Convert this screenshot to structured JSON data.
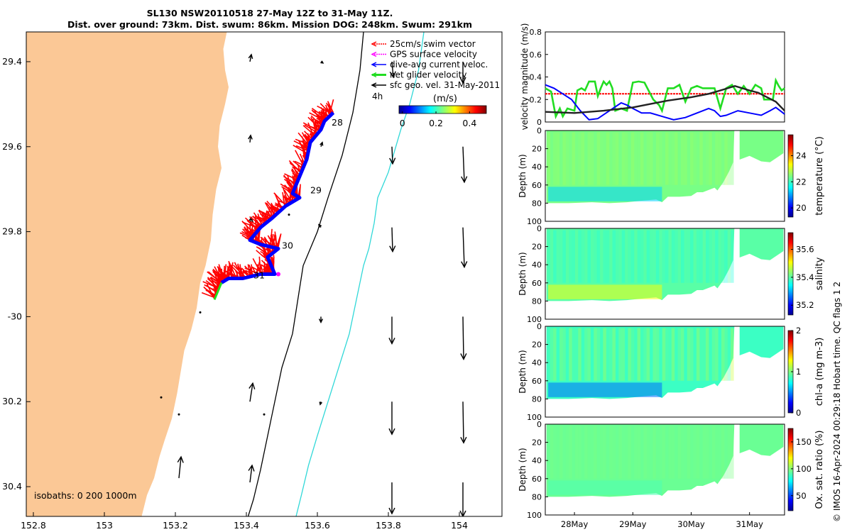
{
  "title_line1": "SL130 NSW20110518 27-May 12Z to 31-May 11Z.",
  "title_line2": "Dist. over ground: 73km. Dist. swum: 86km. Mission DOG: 248km. Swum: 291km",
  "isobaths_label": "isobaths: 0   200  1000m",
  "footer": "© IMOS 16-Apr-2024 00:29:18 Hobart time. QC flags 1  2",
  "colors": {
    "land": "#fbc896",
    "swim_vector": "#ff0000",
    "gps": "#ff00ff",
    "dive_avg": "#0000ff",
    "net": "#22dd22",
    "geo": "#000000",
    "isobath_200": "#30d8d8",
    "isobath_1000": "#000000"
  },
  "chart_data": [
    {
      "type": "map",
      "xlim": [
        152.78,
        154.12
      ],
      "ylim": [
        -30.47,
        -29.33
      ],
      "x_ticks": [
        152.8,
        153,
        153.2,
        153.4,
        153.6,
        153.8,
        154
      ],
      "y_ticks": [
        -29.4,
        -29.6,
        -29.8,
        -30,
        -30.2,
        -30.4
      ],
      "x_tick_labels": [
        "152.8",
        "153",
        "153.2",
        "153.4",
        "153.6",
        "153.8",
        "154"
      ],
      "y_tick_labels": [
        "29.4",
        "29.6",
        "29.8",
        "-30",
        "30.2",
        "30.4"
      ],
      "legend": [
        "25cm/s swim vector",
        "GPS surface velocity",
        "dive-avg current veloc.",
        "net glider velocity",
        "sfc geo. vel. 31-May-2011"
      ],
      "colorbar": {
        "label": "(m/s)",
        "ticks": [
          0,
          0.2,
          0.4
        ],
        "tick_labels": [
          "0",
          "0.2",
          "0.4"
        ],
        "range": [
          -0.02,
          0.5
        ]
      },
      "track_day_labels": [
        {
          "text": "28",
          "lon": 153.64,
          "lat": -29.55
        },
        {
          "text": "29",
          "lon": 153.58,
          "lat": -29.71
        },
        {
          "text": "30",
          "lon": 153.5,
          "lat": -29.84
        },
        {
          "text": "31",
          "lon": 153.42,
          "lat": -29.91
        }
      ],
      "vector_time_label": "4h",
      "track": [
        [
          153.645,
          -29.52
        ],
        [
          153.62,
          -29.54
        ],
        [
          153.61,
          -29.56
        ],
        [
          153.58,
          -29.59
        ],
        [
          153.57,
          -29.63
        ],
        [
          153.55,
          -29.67
        ],
        [
          153.53,
          -29.71
        ],
        [
          153.55,
          -29.72
        ],
        [
          153.51,
          -29.74
        ],
        [
          153.47,
          -29.77
        ],
        [
          153.44,
          -29.79
        ],
        [
          153.41,
          -29.82
        ],
        [
          153.44,
          -29.83
        ],
        [
          153.49,
          -29.84
        ],
        [
          153.46,
          -29.86
        ],
        [
          153.48,
          -29.9
        ],
        [
          153.44,
          -29.9
        ],
        [
          153.39,
          -29.91
        ],
        [
          153.35,
          -29.91
        ],
        [
          153.33,
          -29.92
        ],
        [
          153.32,
          -29.94
        ],
        [
          153.31,
          -29.96
        ]
      ]
    },
    {
      "type": "line",
      "ylabel": "velocity magnitude (m/s)",
      "xlim": [
        0,
        4.1
      ],
      "ylim": [
        0,
        0.8
      ],
      "y_ticks": [
        0,
        0.2,
        0.4,
        0.6,
        0.8
      ],
      "series": [
        {
          "key": "swim",
          "values": [
            [
              0,
              0.25
            ],
            [
              4.1,
              0.25
            ]
          ]
        },
        {
          "key": "net",
          "values": [
            [
              0,
              0.3
            ],
            [
              0.1,
              0.27
            ],
            [
              0.18,
              0.05
            ],
            [
              0.25,
              0.12
            ],
            [
              0.3,
              0.05
            ],
            [
              0.38,
              0.12
            ],
            [
              0.5,
              0.1
            ],
            [
              0.55,
              0.28
            ],
            [
              0.62,
              0.3
            ],
            [
              0.68,
              0.28
            ],
            [
              0.75,
              0.36
            ],
            [
              0.85,
              0.36
            ],
            [
              0.9,
              0.23
            ],
            [
              0.95,
              0.3
            ],
            [
              1.0,
              0.36
            ],
            [
              1.05,
              0.33
            ],
            [
              1.1,
              0.36
            ],
            [
              1.15,
              0.3
            ],
            [
              1.2,
              0.1
            ],
            [
              1.3,
              0.12
            ],
            [
              1.4,
              0.1
            ],
            [
              1.5,
              0.35
            ],
            [
              1.6,
              0.36
            ],
            [
              1.7,
              0.35
            ],
            [
              1.75,
              0.3
            ],
            [
              1.85,
              0.2
            ],
            [
              1.95,
              0.15
            ],
            [
              2.0,
              0.1
            ],
            [
              2.1,
              0.3
            ],
            [
              2.2,
              0.3
            ],
            [
              2.3,
              0.33
            ],
            [
              2.4,
              0.18
            ],
            [
              2.5,
              0.3
            ],
            [
              2.6,
              0.32
            ],
            [
              2.7,
              0.3
            ],
            [
              2.8,
              0.3
            ],
            [
              2.9,
              0.3
            ],
            [
              3.0,
              0.12
            ],
            [
              3.1,
              0.3
            ],
            [
              3.2,
              0.33
            ],
            [
              3.3,
              0.25
            ],
            [
              3.4,
              0.32
            ],
            [
              3.5,
              0.25
            ],
            [
              3.6,
              0.33
            ],
            [
              3.7,
              0.3
            ],
            [
              3.75,
              0.2
            ],
            [
              3.8,
              0.2
            ],
            [
              3.9,
              0.2
            ],
            [
              3.95,
              0.37
            ],
            [
              4.0,
              0.32
            ],
            [
              4.05,
              0.28
            ],
            [
              4.1,
              0.3
            ]
          ]
        },
        {
          "key": "dive_avg",
          "values": [
            [
              0,
              0.33
            ],
            [
              0.15,
              0.3
            ],
            [
              0.3,
              0.25
            ],
            [
              0.45,
              0.2
            ],
            [
              0.6,
              0.1
            ],
            [
              0.75,
              0.02
            ],
            [
              0.9,
              0.03
            ],
            [
              1.1,
              0.1
            ],
            [
              1.3,
              0.17
            ],
            [
              1.4,
              0.15
            ],
            [
              1.5,
              0.12
            ],
            [
              1.65,
              0.08
            ],
            [
              1.8,
              0.08
            ],
            [
              2.0,
              0.05
            ],
            [
              2.2,
              0.02
            ],
            [
              2.4,
              0.04
            ],
            [
              2.6,
              0.08
            ],
            [
              2.8,
              0.12
            ],
            [
              2.9,
              0.1
            ],
            [
              3.0,
              0.05
            ],
            [
              3.1,
              0.06
            ],
            [
              3.3,
              0.1
            ],
            [
              3.5,
              0.08
            ],
            [
              3.7,
              0.06
            ],
            [
              3.85,
              0.1
            ],
            [
              3.95,
              0.13
            ],
            [
              4.05,
              0.09
            ],
            [
              4.1,
              0.07
            ]
          ]
        },
        {
          "key": "geo",
          "values": [
            [
              0,
              0.09
            ],
            [
              0.5,
              0.08
            ],
            [
              1.0,
              0.1
            ],
            [
              1.5,
              0.13
            ],
            [
              1.8,
              0.16
            ],
            [
              2.1,
              0.19
            ],
            [
              2.5,
              0.22
            ],
            [
              2.8,
              0.25
            ],
            [
              3.0,
              0.28
            ],
            [
              3.25,
              0.32
            ],
            [
              3.5,
              0.28
            ],
            [
              3.65,
              0.26
            ],
            [
              3.8,
              0.22
            ],
            [
              3.95,
              0.18
            ],
            [
              4.1,
              0.1
            ]
          ]
        }
      ]
    },
    {
      "type": "heatmap",
      "ylabel": "Depth (m)",
      "cbar_label": "temperature (°C)",
      "ylim": [
        0,
        100
      ],
      "y_ticks": [
        0,
        20,
        40,
        60,
        80,
        100
      ],
      "clim": [
        19.3,
        25.6
      ],
      "cbar_ticks": [
        20,
        22,
        24
      ],
      "base_value": 22.4,
      "deep_value": 21.3,
      "near_surface_value": 22.9
    },
    {
      "type": "heatmap",
      "ylabel": "Depth (m)",
      "cbar_label": "salinity",
      "ylim": [
        0,
        100
      ],
      "y_ticks": [
        0,
        20,
        40,
        60,
        80,
        100
      ],
      "clim": [
        35.13,
        35.72
      ],
      "cbar_ticks": [
        35.2,
        35.4,
        35.6
      ],
      "base_value": 35.4,
      "deep_value": 35.5,
      "near_surface_value": 35.33
    },
    {
      "type": "heatmap",
      "ylabel": "Depth (m)",
      "cbar_label": "chl-a (mg m-3)",
      "ylim": [
        0,
        100
      ],
      "y_ticks": [
        0,
        20,
        40,
        60,
        80,
        100
      ],
      "clim": [
        0,
        2
      ],
      "cbar_ticks": [
        0,
        1,
        2
      ],
      "base_value": 0.85,
      "deep_value": 0.45,
      "near_surface_value": 1.3
    },
    {
      "type": "heatmap",
      "ylabel": "Depth (m)",
      "cbar_label": "Ox. sat. ratio (%)",
      "ylim": [
        0,
        100
      ],
      "y_ticks": [
        0,
        20,
        40,
        60,
        80,
        100
      ],
      "clim": [
        22,
        175
      ],
      "cbar_ticks": [
        50,
        100,
        150
      ],
      "base_value": 95,
      "deep_value": 90,
      "near_surface_value": 100
    }
  ],
  "time_axis": {
    "labels": [
      "28May",
      "29May",
      "30May",
      "31May"
    ],
    "positions": [
      0.5,
      1.5,
      2.5,
      3.5
    ],
    "xlim": [
      0,
      4.1
    ]
  }
}
